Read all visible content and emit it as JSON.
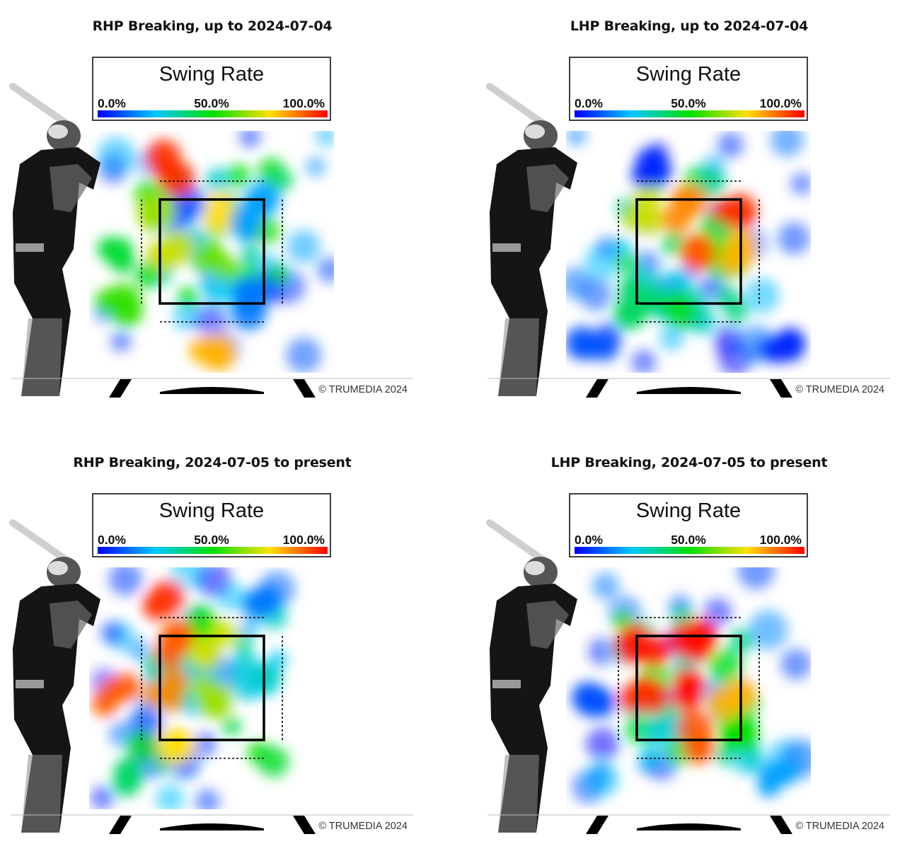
{
  "chart_data": [
    {
      "type": "heatmap",
      "title": "RHP Breaking, up to 2024-07-04",
      "legend_title": "Swing Rate",
      "legend_ticks": [
        "0.0%",
        "50.0%",
        "100.0%"
      ],
      "value_range": [
        0,
        100
      ],
      "colormap": [
        "#0000ff",
        "#00c8ff",
        "#00e000",
        "#ffe000",
        "#ff0000"
      ],
      "watermark": "© TRUMEDIA 2024",
      "batter_side": "right-handed",
      "hot_spots": [
        {
          "col": 1,
          "row": 0,
          "value": 95
        },
        {
          "col": 1,
          "row": 1,
          "value": 65
        },
        {
          "col": 2,
          "row": 1,
          "value": 75
        },
        {
          "col": 1,
          "row": 2,
          "value": 70
        },
        {
          "col": 2,
          "row": 2,
          "value": 60
        },
        {
          "col": 0,
          "row": 2,
          "value": 45
        },
        {
          "col": 0,
          "row": 3,
          "value": 55
        },
        {
          "col": 3,
          "row": 1,
          "value": 20
        },
        {
          "col": 3,
          "row": 3,
          "value": 15
        },
        {
          "col": 2,
          "row": 4,
          "value": 80
        }
      ]
    },
    {
      "type": "heatmap",
      "title": "LHP Breaking, up to 2024-07-04",
      "legend_title": "Swing Rate",
      "legend_ticks": [
        "0.0%",
        "50.0%",
        "100.0%"
      ],
      "value_range": [
        0,
        100
      ],
      "colormap": [
        "#0000ff",
        "#00c8ff",
        "#00e000",
        "#ffe000",
        "#ff0000"
      ],
      "watermark": "© TRUMEDIA 2024",
      "batter_side": "right-handed",
      "hot_spots": [
        {
          "col": 1,
          "row": 1,
          "value": 70
        },
        {
          "col": 2,
          "row": 1,
          "value": 85
        },
        {
          "col": 2,
          "row": 2,
          "value": 90
        },
        {
          "col": 3,
          "row": 2,
          "value": 80
        },
        {
          "col": 1,
          "row": 3,
          "value": 40
        },
        {
          "col": 3,
          "row": 1,
          "value": 95
        },
        {
          "col": 0,
          "row": 4,
          "value": 10
        },
        {
          "col": 4,
          "row": 4,
          "value": 5
        },
        {
          "col": 1,
          "row": 0,
          "value": 5
        }
      ]
    },
    {
      "type": "heatmap",
      "title": "RHP Breaking, 2024-07-05 to present",
      "legend_title": "Swing Rate",
      "legend_ticks": [
        "0.0%",
        "50.0%",
        "100.0%"
      ],
      "value_range": [
        0,
        100
      ],
      "colormap": [
        "#0000ff",
        "#00c8ff",
        "#00e000",
        "#ffe000",
        "#ff0000"
      ],
      "watermark": "© TRUMEDIA 2024",
      "batter_side": "right-handed",
      "hot_spots": [
        {
          "col": 1,
          "row": 1,
          "value": 90
        },
        {
          "col": 2,
          "row": 1,
          "value": 70
        },
        {
          "col": 1,
          "row": 2,
          "value": 85
        },
        {
          "col": 2,
          "row": 2,
          "value": 65
        },
        {
          "col": 0,
          "row": 2,
          "value": 90
        },
        {
          "col": 1,
          "row": 3,
          "value": 75
        },
        {
          "col": 0,
          "row": 4,
          "value": 40
        },
        {
          "col": 1,
          "row": 0,
          "value": 95
        },
        {
          "col": 3,
          "row": 0,
          "value": 15
        }
      ]
    },
    {
      "type": "heatmap",
      "title": "LHP Breaking, 2024-07-05 to present",
      "legend_title": "Swing Rate",
      "legend_ticks": [
        "0.0%",
        "50.0%",
        "100.0%"
      ],
      "value_range": [
        0,
        100
      ],
      "colormap": [
        "#0000ff",
        "#00c8ff",
        "#00e000",
        "#ffe000",
        "#ff0000"
      ],
      "watermark": "© TRUMEDIA 2024",
      "batter_side": "right-handed",
      "hot_spots": [
        {
          "col": 1,
          "row": 1,
          "value": 98
        },
        {
          "col": 2,
          "row": 1,
          "value": 98
        },
        {
          "col": 1,
          "row": 2,
          "value": 95
        },
        {
          "col": 2,
          "row": 2,
          "value": 98
        },
        {
          "col": 3,
          "row": 2,
          "value": 80
        },
        {
          "col": 2,
          "row": 3,
          "value": 90
        },
        {
          "col": 3,
          "row": 3,
          "value": 50
        },
        {
          "col": 0,
          "row": 2,
          "value": 10
        },
        {
          "col": 4,
          "row": 4,
          "value": 20
        }
      ]
    }
  ]
}
